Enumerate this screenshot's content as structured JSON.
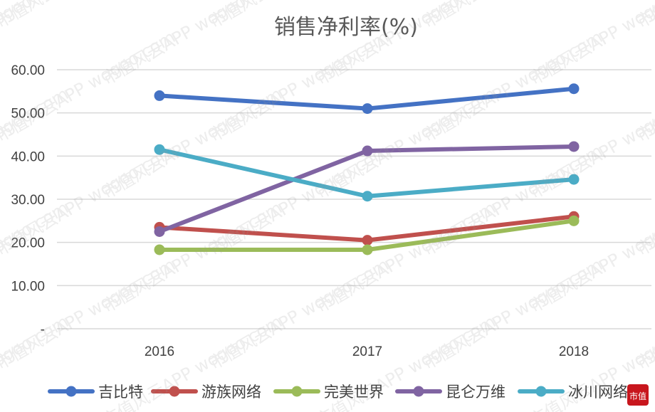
{
  "chart_data": {
    "type": "line",
    "title": "销售净利率(%)",
    "x": [
      "2016",
      "2017",
      "2018"
    ],
    "y_ticks": [
      "60.00",
      "50.00",
      "40.00",
      "30.00",
      "20.00",
      "10.00",
      "-"
    ],
    "ylim": [
      0,
      60
    ],
    "grid": true,
    "legend_position": "bottom",
    "series": [
      {
        "name": "吉比特",
        "color": "#4472c4",
        "values": [
          54.0,
          51.0,
          55.6
        ]
      },
      {
        "name": "游族网络",
        "color": "#c0504d",
        "values": [
          23.5,
          20.5,
          26.0
        ]
      },
      {
        "name": "完美世界",
        "color": "#9bbb59",
        "values": [
          18.3,
          18.3,
          25.0
        ]
      },
      {
        "name": "昆仑万维",
        "color": "#8064a2",
        "values": [
          22.5,
          41.2,
          42.2
        ]
      },
      {
        "name": "冰川网络",
        "color": "#4bacc6",
        "values": [
          41.5,
          30.7,
          34.6
        ]
      }
    ]
  },
  "watermark": {
    "text": "市值风云APP wogoo.com"
  },
  "logo": {
    "text": "市值"
  }
}
